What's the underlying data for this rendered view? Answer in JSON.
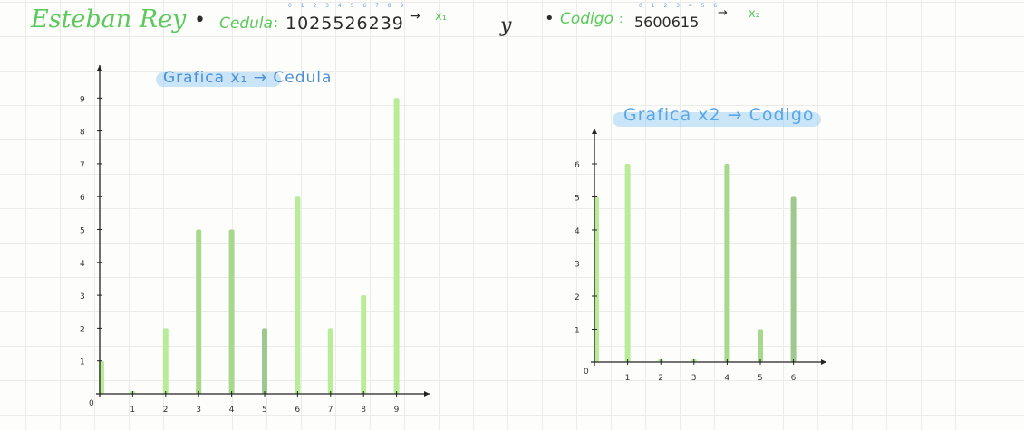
{
  "header": {
    "name": "Esteban Rey",
    "colon": ":",
    "bullet1": "•",
    "cedula_label": "Cedula",
    "cedula_colon": ":",
    "cedula_value": "1025526239",
    "cedula_digit_indices": "0 1 2 3 4 5 6 7 8 9",
    "arrow1": "→",
    "x1": "x₁",
    "connector": "y",
    "bullet2": "•",
    "codigo_label": "Codigo",
    "codigo_colon": ":",
    "codigo_value": "5600615",
    "codigo_digit_indices": "0 1 2 3 4 5 6",
    "arrow2": "→",
    "x2": "x₂"
  },
  "colors": {
    "accent_green": "#5bc95b",
    "bar_light": "#b9ec98",
    "bar_mid": "#a8d88c",
    "bar_dark": "#9fc890",
    "title_blue": "#5aa7e6",
    "axis": "#222222"
  },
  "chart_data": [
    {
      "type": "bar",
      "title": "Grafica x₁ → Cedula",
      "x": [
        0,
        1,
        2,
        3,
        4,
        5,
        6,
        7,
        8,
        9
      ],
      "values": [
        1,
        0,
        2,
        5,
        5,
        2,
        6,
        2,
        3,
        9
      ],
      "x_tick_labels": [
        "1",
        "2",
        "3",
        "4",
        "5",
        "6",
        "7",
        "8",
        "9"
      ],
      "y_tick_labels": [
        "1",
        "2",
        "3",
        "4",
        "5",
        "6",
        "7",
        "8",
        "9"
      ],
      "origin_label": "0",
      "xlim": [
        0,
        9
      ],
      "ylim": [
        0,
        9
      ],
      "grid": true
    },
    {
      "type": "bar",
      "title": "Grafica x2 → Codigo",
      "x": [
        0,
        1,
        2,
        3,
        4,
        5,
        6
      ],
      "values": [
        5,
        6,
        0,
        0,
        6,
        1,
        5
      ],
      "x_tick_labels": [
        "1",
        "2",
        "3",
        "4",
        "5",
        "6"
      ],
      "y_tick_labels": [
        "1",
        "2",
        "3",
        "4",
        "5",
        "6"
      ],
      "origin_label": "0",
      "xlim": [
        0,
        6
      ],
      "ylim": [
        0,
        6
      ],
      "grid": true
    }
  ]
}
